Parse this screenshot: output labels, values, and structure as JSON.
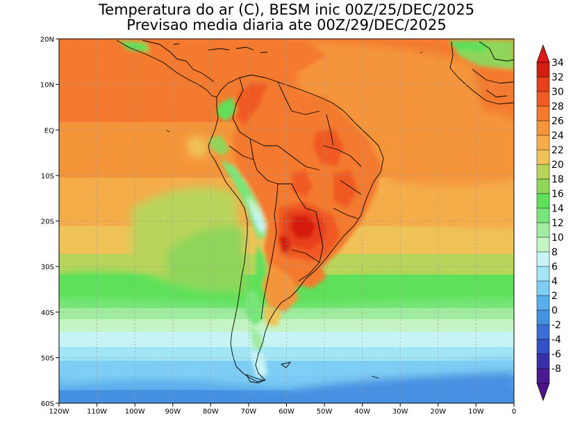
{
  "title_line1": "Temperatura do ar (C), BESM inic 00Z/25/DEC/2025",
  "title_line2": "Previsao media diaria ate 00Z/29/DEC/2025",
  "lat_labels": [
    "20N",
    "10N",
    "EQ",
    "10S",
    "20S",
    "30S",
    "40S",
    "50S",
    "60S"
  ],
  "lon_labels": [
    "120W",
    "110W",
    "100W",
    "90W",
    "80W",
    "70W",
    "60W",
    "50W",
    "40W",
    "30W",
    "20W",
    "10W",
    "0"
  ],
  "colorbar": {
    "labels": [
      "34",
      "32",
      "30",
      "28",
      "26",
      "24",
      "22",
      "20",
      "18",
      "16",
      "14",
      "12",
      "10",
      "8",
      "6",
      "4",
      "2",
      "0",
      "-2",
      "-4",
      "-6",
      "-8"
    ],
    "colors": [
      "#d41e10",
      "#e8401c",
      "#f05a24",
      "#f37a2e",
      "#f5953a",
      "#f5ad4a",
      "#efc358",
      "#b9d45a",
      "#8fd55a",
      "#5fe05a",
      "#78e67a",
      "#a0eca0",
      "#c4f4c4",
      "#c6f4f4",
      "#a2e6f6",
      "#7ecdf4",
      "#5aaeec",
      "#4690e2",
      "#3a70d6",
      "#3450c4",
      "#3a30a8",
      "#4a1a90"
    ],
    "top_color": "#e21818",
    "bottom_color": "#50148c"
  }
}
